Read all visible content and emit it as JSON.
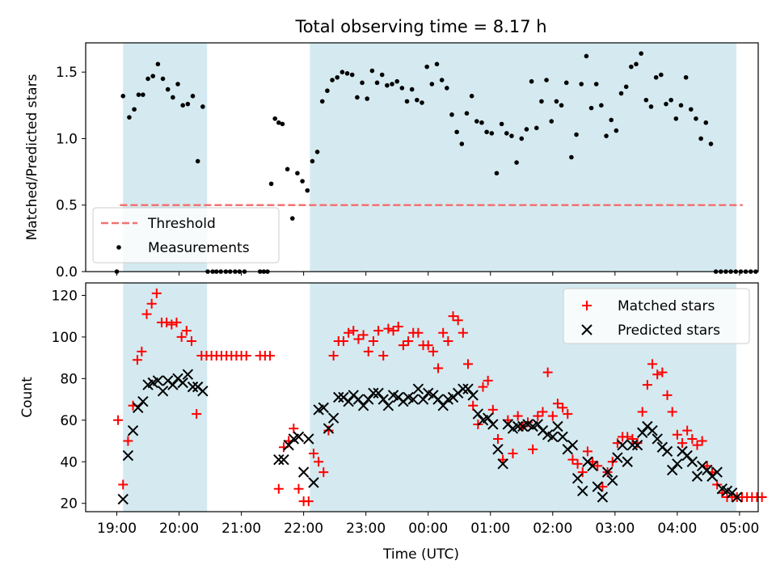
{
  "colors": {
    "night_shade": "#d4eaf0",
    "threshold": "#f37272",
    "measurement": "#000000",
    "matched": "#ff0000",
    "predicted": "#000000"
  },
  "chart_data": [
    {
      "type": "scatter",
      "title": "Total observing time = 8.17 h",
      "xlabel": "",
      "ylabel": "Matched/Predicted stars",
      "xlim": [
        18.5,
        29.3
      ],
      "ylim": [
        0,
        1.72
      ],
      "yticks": [
        0.0,
        0.5,
        1.0,
        1.5
      ],
      "ytick_labels": [
        "0.0",
        "0.5",
        "1.0",
        "1.5"
      ],
      "shaded_intervals": [
        [
          19.1,
          20.45
        ],
        [
          22.1,
          28.95
        ]
      ],
      "threshold": {
        "name": "Threshold",
        "value": 0.5,
        "x": [
          19.05,
          29.05
        ]
      },
      "legend": [
        "Threshold",
        "Measurements"
      ],
      "legend_loc": "lower-left",
      "series": [
        {
          "name": "Measurements",
          "x": [
            19.0,
            19.1,
            19.2,
            19.28,
            19.35,
            19.42,
            19.5,
            19.58,
            19.66,
            19.74,
            19.82,
            19.9,
            19.98,
            20.06,
            20.14,
            20.22,
            20.3,
            20.38,
            20.46,
            20.54,
            20.6,
            20.67,
            20.75,
            20.82,
            20.9,
            20.97,
            21.05,
            21.3,
            21.36,
            21.42,
            21.48,
            21.54,
            21.6,
            21.66,
            21.74,
            21.82,
            21.9,
            21.98,
            22.06,
            22.14,
            22.22,
            22.3,
            22.38,
            22.46,
            22.54,
            22.62,
            22.7,
            22.78,
            22.86,
            22.94,
            23.02,
            23.1,
            23.18,
            23.26,
            23.34,
            23.42,
            23.5,
            23.58,
            23.66,
            23.74,
            23.82,
            23.9,
            23.98,
            24.06,
            24.14,
            24.22,
            24.3,
            24.38,
            24.46,
            24.54,
            24.62,
            24.7,
            24.78,
            24.86,
            24.94,
            25.02,
            25.1,
            25.18,
            25.26,
            25.34,
            25.42,
            25.5,
            25.58,
            25.66,
            25.74,
            25.82,
            25.9,
            25.98,
            26.06,
            26.14,
            26.22,
            26.3,
            26.38,
            26.46,
            26.54,
            26.62,
            26.7,
            26.78,
            26.86,
            26.94,
            27.02,
            27.1,
            27.18,
            27.26,
            27.34,
            27.42,
            27.5,
            27.58,
            27.66,
            27.74,
            27.82,
            27.9,
            27.98,
            28.06,
            28.14,
            28.22,
            28.3,
            28.38,
            28.46,
            28.54,
            28.62,
            28.7,
            28.78,
            28.86,
            28.94,
            29.02,
            29.1,
            29.18,
            29.26
          ],
          "y": [
            0.0,
            1.32,
            1.16,
            1.22,
            1.33,
            1.33,
            1.45,
            1.47,
            1.56,
            1.45,
            1.37,
            1.31,
            1.41,
            1.25,
            1.26,
            1.32,
            0.83,
            1.24,
            0.0,
            0.0,
            0.0,
            0.0,
            0.0,
            0.0,
            0.0,
            0.0,
            0.0,
            0.0,
            0.0,
            0.0,
            0.66,
            1.15,
            1.12,
            1.11,
            0.77,
            0.4,
            0.74,
            0.68,
            0.61,
            0.83,
            0.9,
            1.28,
            1.36,
            1.44,
            1.46,
            1.5,
            1.49,
            1.48,
            1.31,
            1.42,
            1.3,
            1.51,
            1.42,
            1.48,
            1.4,
            1.41,
            1.43,
            1.38,
            1.28,
            1.37,
            1.29,
            1.27,
            1.54,
            1.41,
            1.56,
            1.44,
            1.38,
            1.18,
            1.05,
            0.96,
            1.19,
            1.32,
            1.13,
            1.12,
            1.05,
            1.04,
            0.74,
            1.11,
            1.04,
            1.02,
            0.82,
            1.0,
            1.07,
            1.43,
            1.08,
            1.28,
            1.44,
            1.13,
            1.28,
            1.25,
            1.42,
            0.86,
            1.03,
            1.41,
            1.62,
            1.23,
            1.41,
            1.25,
            1.02,
            1.14,
            1.06,
            1.34,
            1.39,
            1.54,
            1.56,
            1.64,
            1.29,
            1.24,
            1.46,
            1.48,
            1.26,
            1.29,
            1.15,
            1.25,
            1.46,
            1.22,
            1.15,
            1.0,
            1.12,
            0.96,
            0.0,
            0.0,
            0.0,
            0.0,
            0.0,
            0.0,
            0.0,
            0.0,
            0.0
          ]
        }
      ]
    },
    {
      "type": "scatter",
      "title": "",
      "xlabel": "Time (UTC)",
      "ylabel": "Count",
      "xlim": [
        18.5,
        29.3
      ],
      "ylim": [
        16,
        126
      ],
      "yticks": [
        20,
        40,
        60,
        80,
        100,
        120
      ],
      "ytick_labels": [
        "20",
        "40",
        "60",
        "80",
        "100",
        "120"
      ],
      "xticks": [
        19,
        20,
        21,
        22,
        23,
        24,
        25,
        26,
        27,
        28,
        29
      ],
      "xtick_labels": [
        "19:00",
        "20:00",
        "21:00",
        "22:00",
        "23:00",
        "00:00",
        "01:00",
        "02:00",
        "03:00",
        "04:00",
        "05:00"
      ],
      "shaded_intervals": [
        [
          19.1,
          20.45
        ],
        [
          22.1,
          28.95
        ]
      ],
      "legend": [
        "Matched stars",
        "Predicted stars"
      ],
      "legend_loc": "top-right",
      "series": [
        {
          "name": "Matched stars",
          "x": [
            19.02,
            19.1,
            19.18,
            19.26,
            19.33,
            19.4,
            19.48,
            19.56,
            19.64,
            19.72,
            19.8,
            19.88,
            19.96,
            20.04,
            20.12,
            20.2,
            20.28,
            20.36,
            20.44,
            20.52,
            20.6,
            20.68,
            20.76,
            20.84,
            20.92,
            21.0,
            21.08,
            21.3,
            21.38,
            21.46,
            21.6,
            21.68,
            21.76,
            21.84,
            21.92,
            22.0,
            22.08,
            22.16,
            22.24,
            22.32,
            22.4,
            22.48,
            22.56,
            22.64,
            22.72,
            22.8,
            22.88,
            22.96,
            23.04,
            23.12,
            23.2,
            23.28,
            23.36,
            23.44,
            23.52,
            23.6,
            23.68,
            23.76,
            23.84,
            23.92,
            24.0,
            24.08,
            24.16,
            24.24,
            24.32,
            24.4,
            24.48,
            24.56,
            24.64,
            24.72,
            24.8,
            24.88,
            24.96,
            25.04,
            25.12,
            25.2,
            25.28,
            25.36,
            25.44,
            25.52,
            25.6,
            25.68,
            25.76,
            25.84,
            25.92,
            26.0,
            26.08,
            26.16,
            26.24,
            26.32,
            26.4,
            26.48,
            26.56,
            26.64,
            26.72,
            26.8,
            26.88,
            26.96,
            27.04,
            27.12,
            27.2,
            27.28,
            27.36,
            27.44,
            27.52,
            27.6,
            27.68,
            27.76,
            27.84,
            27.92,
            28.0,
            28.08,
            28.16,
            28.24,
            28.32,
            28.4,
            28.48,
            28.56,
            28.64,
            28.72,
            28.8,
            28.88,
            28.96,
            29.04,
            29.12,
            29.2,
            29.28,
            29.36
          ],
          "y": [
            60,
            29,
            50,
            67,
            89,
            93,
            111,
            116,
            121,
            107,
            107,
            106,
            107,
            100,
            103,
            98,
            63,
            91,
            91,
            91,
            91,
            91,
            91,
            91,
            91,
            91,
            91,
            91,
            91,
            91,
            27,
            47,
            50,
            56,
            27,
            21,
            21,
            44,
            40,
            35,
            55,
            91,
            98,
            98,
            102,
            103,
            99,
            101,
            93,
            98,
            103,
            91,
            104,
            103,
            105,
            96,
            98,
            102,
            102,
            96,
            96,
            93,
            85,
            102,
            98,
            110,
            108,
            102,
            87,
            67,
            58,
            76,
            79,
            65,
            51,
            41,
            60,
            44,
            62,
            57,
            59,
            46,
            62,
            64,
            83,
            62,
            68,
            66,
            63,
            41,
            39,
            35,
            45,
            40,
            38,
            28,
            35,
            40,
            49,
            52,
            52,
            51,
            49,
            64,
            77,
            87,
            82,
            83,
            72,
            64,
            53,
            49,
            55,
            51,
            48,
            50,
            38,
            35,
            29,
            25,
            23,
            23,
            23,
            23,
            23,
            23,
            23,
            23
          ],
          "color": "#ff0000"
        },
        {
          "name": "Predicted stars",
          "x": [
            19.1,
            19.18,
            19.26,
            19.34,
            19.42,
            19.5,
            19.58,
            19.66,
            19.74,
            19.82,
            19.9,
            19.98,
            20.06,
            20.14,
            20.22,
            20.3,
            20.38,
            21.6,
            21.68,
            21.76,
            21.84,
            21.92,
            22.0,
            22.08,
            22.16,
            22.24,
            22.32,
            22.4,
            22.48,
            22.56,
            22.64,
            22.72,
            22.8,
            22.88,
            22.96,
            23.04,
            23.12,
            23.2,
            23.28,
            23.36,
            23.44,
            23.52,
            23.6,
            23.68,
            23.76,
            23.84,
            23.92,
            24.0,
            24.08,
            24.16,
            24.24,
            24.32,
            24.4,
            24.48,
            24.56,
            24.64,
            24.72,
            24.8,
            24.88,
            24.96,
            25.04,
            25.12,
            25.2,
            25.28,
            25.36,
            25.44,
            25.52,
            25.6,
            25.68,
            25.76,
            25.84,
            25.92,
            26.0,
            26.08,
            26.16,
            26.24,
            26.32,
            26.4,
            26.48,
            26.56,
            26.64,
            26.72,
            26.8,
            26.88,
            26.96,
            27.04,
            27.12,
            27.2,
            27.28,
            27.36,
            27.44,
            27.52,
            27.6,
            27.68,
            27.76,
            27.84,
            27.92,
            28.0,
            28.08,
            28.16,
            28.24,
            28.32,
            28.4,
            28.48,
            28.56,
            28.64,
            28.72,
            28.8,
            28.88,
            28.96
          ],
          "y": [
            22,
            43,
            55,
            66,
            69,
            77,
            78,
            79,
            74,
            79,
            77,
            80,
            78,
            82,
            76,
            76,
            74,
            41,
            41,
            48,
            51,
            52,
            35,
            51,
            30,
            65,
            66,
            56,
            61,
            71,
            71,
            69,
            72,
            70,
            67,
            70,
            73,
            73,
            70,
            67,
            72,
            71,
            69,
            71,
            70,
            75,
            70,
            73,
            72,
            70,
            67,
            70,
            71,
            73,
            75,
            75,
            72,
            63,
            60,
            61,
            58,
            46,
            39,
            58,
            56,
            57,
            57,
            58,
            57,
            58,
            55,
            53,
            52,
            57,
            52,
            46,
            48,
            32,
            26,
            40,
            38,
            28,
            23,
            35,
            31,
            42,
            48,
            40,
            48,
            48,
            54,
            57,
            55,
            51,
            47,
            45,
            36,
            39,
            45,
            43,
            40,
            33,
            38,
            36,
            33,
            35,
            27,
            26,
            25,
            23
          ],
          "color": "#000000"
        }
      ]
    }
  ]
}
